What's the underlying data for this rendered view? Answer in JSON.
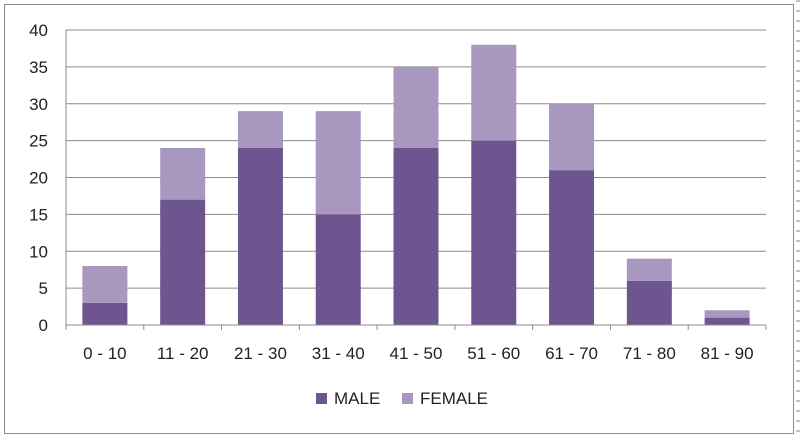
{
  "chart_data": {
    "type": "bar",
    "stacked": true,
    "title": "",
    "xlabel": "",
    "ylabel": "",
    "ylim": [
      0,
      40
    ],
    "ytick_step": 5,
    "grid": true,
    "legend_position": "bottom",
    "categories": [
      "0 - 10",
      "11 - 20",
      "21 - 30",
      "31 - 40",
      "41 - 50",
      "51 - 60",
      "61 - 70",
      "71 - 80",
      "81 - 90"
    ],
    "series": [
      {
        "name": "MALE",
        "color": "#6f5590",
        "values": [
          3,
          17,
          24,
          15,
          24,
          25,
          21,
          6,
          1
        ]
      },
      {
        "name": "FEMALE",
        "color": "#a898c0",
        "values": [
          5,
          7,
          5,
          14,
          11,
          13,
          9,
          3,
          1
        ]
      }
    ]
  }
}
